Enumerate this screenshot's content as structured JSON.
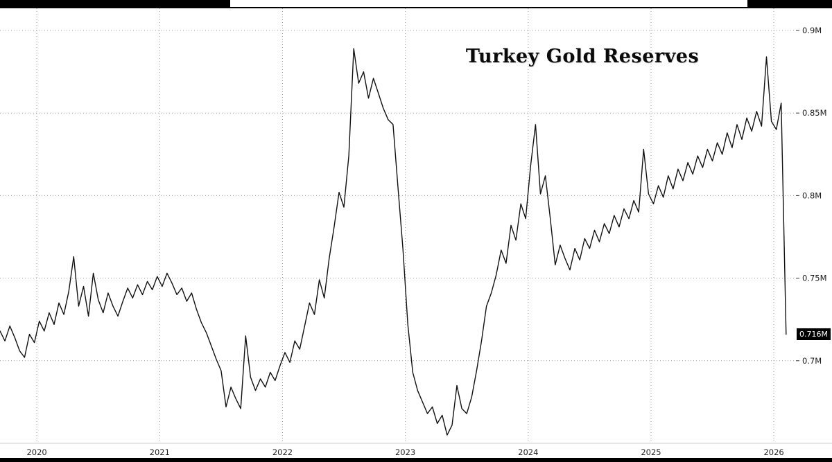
{
  "chart_data": {
    "type": "line",
    "title": "Turkey Gold Reserves",
    "series_name": "Turkey Gold Reserves",
    "x_start": 2019.7,
    "x_step": 0.04,
    "x_axis_end": 2026.18,
    "x_ticks": [
      2020,
      2021,
      2022,
      2023,
      2024,
      2025,
      2026
    ],
    "y_ticks": [
      {
        "value": 0.9,
        "label": "0.9M"
      },
      {
        "value": 0.85,
        "label": "0.85M"
      },
      {
        "value": 0.8,
        "label": "0.8M"
      },
      {
        "value": 0.75,
        "label": "0.75M"
      },
      {
        "value": 0.7,
        "label": "0.7M"
      }
    ],
    "ylim": [
      0.65,
      0.9134
    ],
    "grid_on": true,
    "legend": "none",
    "last_value": 0.716,
    "last_label": "0.716M",
    "line_color": "#111111",
    "grid_color": "#9a9a9a",
    "values": [
      0.718,
      0.712,
      0.721,
      0.714,
      0.706,
      0.702,
      0.716,
      0.711,
      0.724,
      0.718,
      0.729,
      0.722,
      0.735,
      0.728,
      0.742,
      0.763,
      0.733,
      0.745,
      0.727,
      0.753,
      0.737,
      0.729,
      0.741,
      0.733,
      0.727,
      0.736,
      0.744,
      0.738,
      0.746,
      0.74,
      0.748,
      0.743,
      0.751,
      0.745,
      0.753,
      0.747,
      0.74,
      0.744,
      0.736,
      0.741,
      0.731,
      0.723,
      0.717,
      0.709,
      0.701,
      0.694,
      0.672,
      0.684,
      0.677,
      0.671,
      0.715,
      0.69,
      0.682,
      0.689,
      0.684,
      0.693,
      0.688,
      0.697,
      0.705,
      0.699,
      0.712,
      0.707,
      0.721,
      0.735,
      0.728,
      0.749,
      0.738,
      0.762,
      0.781,
      0.802,
      0.793,
      0.824,
      0.889,
      0.868,
      0.875,
      0.859,
      0.871,
      0.862,
      0.853,
      0.846,
      0.843,
      0.805,
      0.768,
      0.722,
      0.693,
      0.682,
      0.675,
      0.668,
      0.672,
      0.662,
      0.667,
      0.655,
      0.661,
      0.685,
      0.671,
      0.668,
      0.678,
      0.694,
      0.712,
      0.733,
      0.741,
      0.752,
      0.767,
      0.759,
      0.782,
      0.773,
      0.795,
      0.786,
      0.818,
      0.843,
      0.801,
      0.812,
      0.786,
      0.758,
      0.77,
      0.762,
      0.755,
      0.768,
      0.761,
      0.774,
      0.768,
      0.779,
      0.772,
      0.783,
      0.777,
      0.788,
      0.781,
      0.792,
      0.786,
      0.797,
      0.79,
      0.828,
      0.801,
      0.795,
      0.806,
      0.799,
      0.812,
      0.804,
      0.816,
      0.809,
      0.82,
      0.813,
      0.824,
      0.817,
      0.828,
      0.821,
      0.832,
      0.825,
      0.838,
      0.829,
      0.843,
      0.834,
      0.847,
      0.839,
      0.851,
      0.842,
      0.884,
      0.845,
      0.84,
      0.856,
      0.716
    ]
  }
}
